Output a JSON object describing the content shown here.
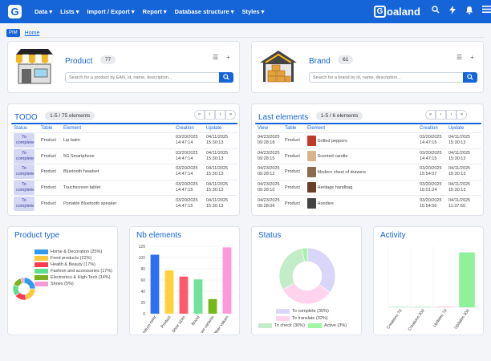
{
  "nav": {
    "logo_letter": "G",
    "menu": [
      "Data ▾",
      "Lists ▾",
      "Import / Export ▾",
      "Report ▾",
      "Database structure ▾",
      "Styles ▾"
    ],
    "brand_letter": "G",
    "brand_rest": "oaland",
    "icons": [
      "search-icon",
      "bolt-icon",
      "bell-icon",
      "hamburger-icon"
    ]
  },
  "breadcrumb": {
    "tag": "PIM",
    "home": "Home"
  },
  "product": {
    "title": "Product",
    "count": "77",
    "placeholder": "Search for a product by EAN, id, name, description..."
  },
  "brand": {
    "title": "Brand",
    "count": "61",
    "placeholder": "Search for a brand by id, name, description..."
  },
  "todo": {
    "title": "TODO",
    "badge": "1-5 / 75 elements",
    "pager": [
      "«",
      "‹",
      "›",
      "»"
    ],
    "headers": [
      "Status",
      "Table",
      "Element",
      "Creation",
      "Update"
    ],
    "rows": [
      {
        "status": "To complete",
        "table": "Product",
        "element": "Lip balm",
        "creation": "03/20/2025 14:47:14",
        "update": "04/11/2025 15:30:13"
      },
      {
        "status": "To complete",
        "table": "Product",
        "element": "5G Smartphone",
        "creation": "03/20/2025 14:47:14",
        "update": "04/11/2025 15:30:13"
      },
      {
        "status": "To complete",
        "table": "Product",
        "element": "Bluetooth headset",
        "creation": "03/20/2025 14:47:14",
        "update": "04/11/2025 15:30:13"
      },
      {
        "status": "To complete",
        "table": "Product",
        "element": "Touchscreen tablet",
        "creation": "03/20/2025 14:47:15",
        "update": "04/11/2025 15:30:13"
      },
      {
        "status": "To complete",
        "table": "Product",
        "element": "Portable Bluetooth speaker",
        "creation": "03/20/2025 14:47:15",
        "update": "04/11/2025 15:30:13"
      }
    ]
  },
  "last": {
    "title": "Last elements",
    "badge": "1-5 / 6 elements",
    "pager": [
      "«",
      "‹",
      "›",
      "»"
    ],
    "headers": [
      "View",
      "Table",
      "Element",
      "Creation",
      "Update"
    ],
    "rows": [
      {
        "view": "04/23/2025 09:28:18",
        "table": "Product",
        "element": "Grilled peppers",
        "thumb": "#c0392b",
        "creation": "03/20/2025 14:47:15",
        "update": "04/11/2025 15:30:13"
      },
      {
        "view": "04/23/2025 09:28:15",
        "table": "Product",
        "element": "Scented candle",
        "thumb": "#d9b38c",
        "creation": "03/20/2025 14:47:15",
        "update": "04/11/2025 15:30:13"
      },
      {
        "view": "04/23/2025 09:28:12",
        "table": "Product",
        "element": "Modern chest of drawers",
        "thumb": "#8a6a4b",
        "creation": "03/20/2025 15:54:07",
        "update": "04/11/2025 15:30:13"
      },
      {
        "view": "04/23/2025 09:28:10",
        "table": "Product",
        "element": "Heritage handbag",
        "thumb": "#6b3e26",
        "creation": "03/20/2025 16:01:24",
        "update": "04/11/2025 15:30:13"
      },
      {
        "view": "04/23/2025 09:28:06",
        "table": "Product",
        "element": "Hoodies",
        "thumb": "#444444",
        "creation": "03/20/2025 16:54:56",
        "update": "04/11/2025 11:37:50"
      }
    ]
  },
  "chart_data": [
    {
      "type": "pie",
      "title": "Product type",
      "series": [
        {
          "name": "Home & Decoration (25%)",
          "value": 25,
          "color": "#2e9bef"
        },
        {
          "name": "Food products (22%)",
          "value": 22,
          "color": "#ffc93c"
        },
        {
          "name": "Health & Beauty (17%)",
          "value": 17,
          "color": "#ff3b4e"
        },
        {
          "name": "Fashion and accessories (17%)",
          "value": 17,
          "color": "#5ee08a"
        },
        {
          "name": "Electronics & High-Tech (14%)",
          "value": 14,
          "color": "#79b21e"
        },
        {
          "name": "Shoes (5%)",
          "value": 5,
          "color": "#f79ad3"
        }
      ]
    },
    {
      "type": "bar",
      "title": "Nb elements",
      "categories": [
        "Furniture color",
        "Product",
        "Shoe sizes",
        "Brand",
        "Furniture variants",
        "Other Values"
      ],
      "values": [
        105,
        77,
        66,
        61,
        26,
        118
      ],
      "colors": [
        "#2e6ff2",
        "#ffd23c",
        "#ff5a6a",
        "#6fe39a",
        "#74b81a",
        "#ff9ad8"
      ],
      "ylim": [
        0,
        120
      ],
      "yticks": [
        "120",
        "100",
        "80",
        "60",
        "40",
        "20",
        "0"
      ]
    },
    {
      "type": "pie",
      "title": "Status",
      "series": [
        {
          "name": "To complete (35%)",
          "value": 35,
          "color": "#d9d6f9"
        },
        {
          "name": "To translate (32%)",
          "value": 32,
          "color": "#ffd4ec"
        },
        {
          "name": "To check (30%)",
          "value": 30,
          "color": "#c3ecc8"
        },
        {
          "name": "Active (3%)",
          "value": 3,
          "color": "#9ff5a4"
        }
      ]
    },
    {
      "type": "bar",
      "title": "Activity",
      "categories": [
        "Creations 7d",
        "Creations 30d",
        "Updates 7d",
        "Updates 30d"
      ],
      "values": [
        0,
        0,
        2,
        270
      ],
      "colors": [
        "#9ef1b8",
        "#9ef1b8",
        "#f5a8d4",
        "#8ff29a"
      ],
      "ylim": [
        0,
        300
      ]
    }
  ]
}
